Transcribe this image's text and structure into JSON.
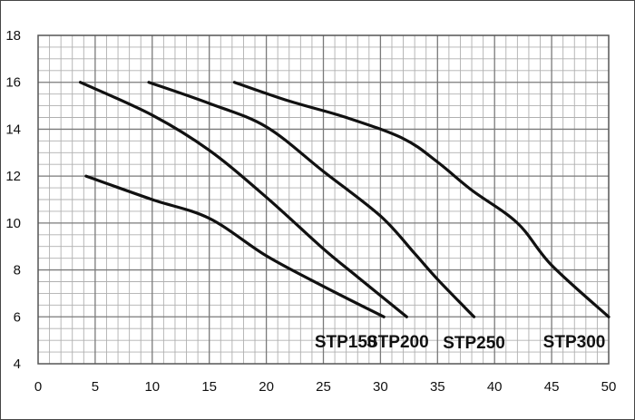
{
  "chart_data": {
    "type": "line",
    "title": "",
    "xlabel": "",
    "ylabel": "",
    "xlim": [
      0,
      50
    ],
    "ylim": [
      4,
      18
    ],
    "x_ticks": [
      "0",
      "5",
      "10",
      "15",
      "20",
      "25",
      "30",
      "35",
      "40",
      "45",
      "50"
    ],
    "y_ticks": [
      "4",
      "6",
      "8",
      "10",
      "12",
      "14",
      "16",
      "18"
    ],
    "grid": true,
    "minor_grid": true,
    "line_color": "#111111",
    "grid_color": "#999999",
    "series": [
      {
        "name": "STP150",
        "points": [
          [
            4.2,
            12
          ],
          [
            10,
            11
          ],
          [
            15,
            10.2
          ],
          [
            20,
            8.6
          ],
          [
            25,
            7.3
          ],
          [
            30.3,
            6
          ]
        ]
      },
      {
        "name": "STP200",
        "points": [
          [
            3.7,
            16
          ],
          [
            10,
            14.6
          ],
          [
            15,
            13.1
          ],
          [
            20,
            11.1
          ],
          [
            25,
            8.9
          ],
          [
            28,
            7.7
          ],
          [
            32.3,
            6
          ]
        ]
      },
      {
        "name": "STP250",
        "points": [
          [
            9.7,
            16
          ],
          [
            15,
            15.1
          ],
          [
            20,
            14.1
          ],
          [
            25,
            12.2
          ],
          [
            30,
            10.3
          ],
          [
            33,
            8.7
          ],
          [
            35,
            7.6
          ],
          [
            38.2,
            6
          ]
        ]
      },
      {
        "name": "STP300",
        "points": [
          [
            17.2,
            16
          ],
          [
            22,
            15.2
          ],
          [
            27,
            14.5
          ],
          [
            32,
            13.6
          ],
          [
            35,
            12.6
          ],
          [
            38,
            11.4
          ],
          [
            42,
            10
          ],
          [
            45,
            8.2
          ],
          [
            50,
            6
          ]
        ]
      }
    ]
  }
}
